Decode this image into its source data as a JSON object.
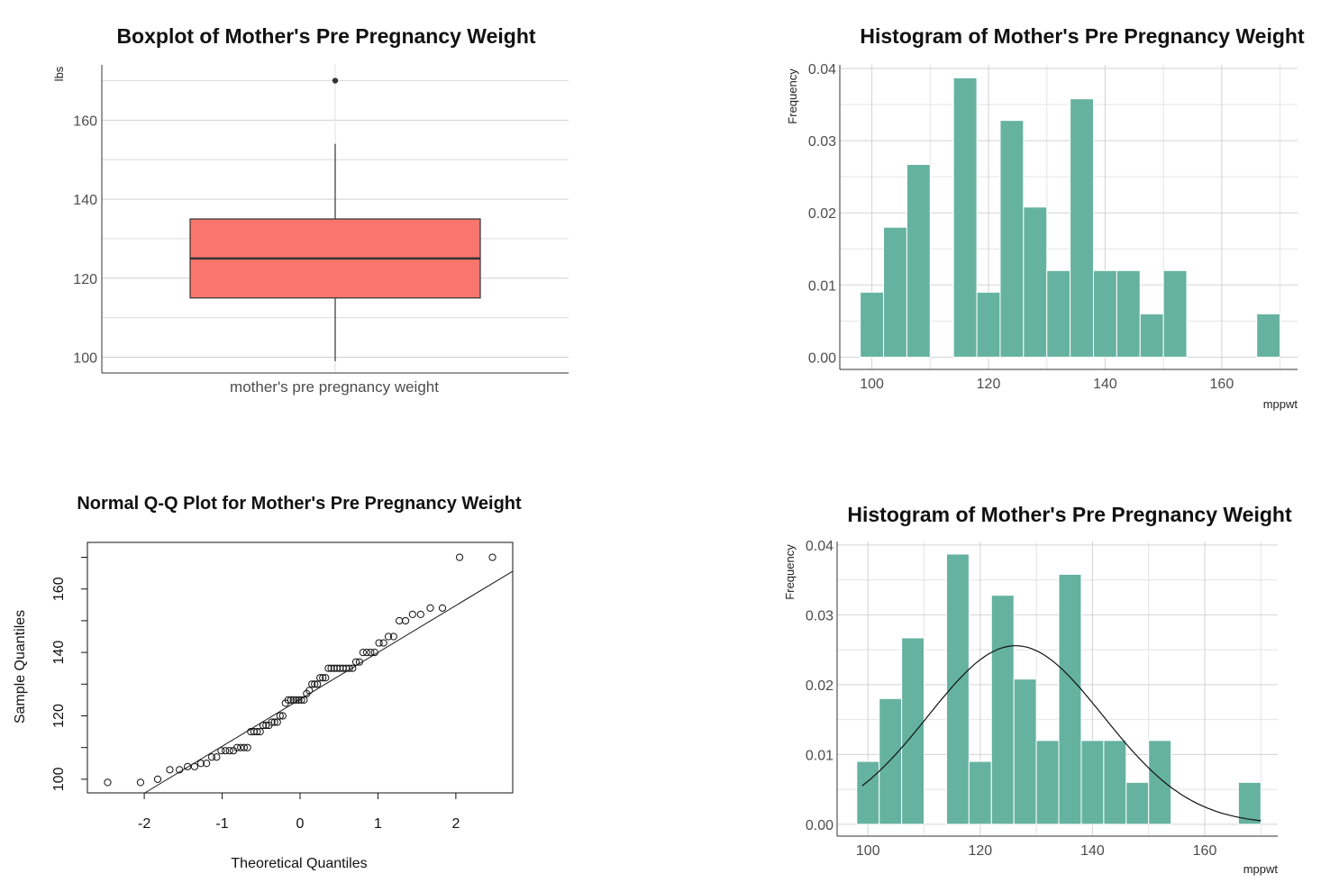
{
  "chart_data": [
    {
      "type": "box",
      "title": "Boxplot of Mother's Pre Pregnancy Weight",
      "ylabel": "lbs",
      "xlabel": "",
      "category": "mother's pre pregnancy weight",
      "ylim": [
        96,
        174
      ],
      "yticks": [
        100,
        120,
        140,
        160
      ],
      "stats": {
        "whisker_low": 99,
        "q1": 115,
        "median": 125,
        "q3": 135,
        "whisker_high": 154,
        "outliers": [
          170
        ]
      },
      "fill": "#f8766d",
      "grid": true
    },
    {
      "type": "bar",
      "title": "Histogram of Mother's Pre Pregnancy Weight",
      "xlabel": "mppwt",
      "ylabel": "Frequency",
      "bin_width": 4,
      "bin_starts": [
        98,
        102,
        106,
        110,
        114,
        118,
        122,
        126,
        130,
        134,
        138,
        142,
        146,
        150,
        154,
        158,
        162,
        166
      ],
      "values": [
        0.009,
        0.018,
        0.0267,
        0,
        0.0387,
        0.009,
        0.0328,
        0.0208,
        0.012,
        0.0358,
        0.012,
        0.012,
        0.006,
        0.012,
        0,
        0,
        0,
        0.006
      ],
      "xlim": [
        94.5,
        173
      ],
      "ylim": [
        -0.0017,
        0.0405
      ],
      "xticks": [
        100,
        120,
        140,
        160
      ],
      "yticks": [
        0.0,
        0.01,
        0.02,
        0.03,
        0.04
      ],
      "color": "#66b2a0",
      "grid": true
    },
    {
      "type": "scatter",
      "title": "Normal Q-Q Plot for Mother's Pre Pregnancy Weight",
      "xlabel": "Theoretical Quantiles",
      "ylabel": "Sample Quantiles",
      "xlim": [
        -2.73,
        2.73
      ],
      "ylim": [
        95.7,
        174.7
      ],
      "xticks": [
        -2,
        -1,
        0,
        1,
        2
      ],
      "yticks": [
        100,
        120,
        140,
        160
      ],
      "points_y": [
        99,
        99,
        100,
        103,
        103,
        104,
        104,
        105,
        105,
        107,
        107,
        109,
        109,
        109,
        109,
        110,
        110,
        110,
        110,
        115,
        115,
        115,
        115,
        117,
        117,
        117,
        118,
        118,
        118,
        120,
        120,
        124,
        125,
        125,
        125,
        125,
        125,
        125,
        125,
        127,
        128,
        130,
        130,
        130,
        132,
        132,
        132,
        135,
        135,
        135,
        135,
        135,
        135,
        135,
        135,
        135,
        137,
        137,
        140,
        140,
        140,
        140,
        143,
        143,
        145,
        145,
        150,
        150,
        152,
        152,
        154,
        154,
        170,
        170
      ],
      "reference_line": {
        "intercept": 125.2,
        "slope": 14.8
      }
    },
    {
      "type": "bar",
      "title": "Histogram of Mother's Pre Pregnancy Weight",
      "xlabel": "mppwt",
      "ylabel": "Frequency",
      "bin_width": 4,
      "bin_starts": [
        98,
        102,
        106,
        110,
        114,
        118,
        122,
        126,
        130,
        134,
        138,
        142,
        146,
        150,
        154,
        158,
        162,
        166
      ],
      "values": [
        0.009,
        0.018,
        0.0267,
        0,
        0.0387,
        0.009,
        0.0328,
        0.0208,
        0.012,
        0.0358,
        0.012,
        0.012,
        0.006,
        0.012,
        0,
        0,
        0,
        0.006
      ],
      "xlim": [
        94.5,
        173
      ],
      "ylim": [
        -0.0017,
        0.0405
      ],
      "xticks": [
        100,
        120,
        140,
        160
      ],
      "yticks": [
        0.0,
        0.01,
        0.02,
        0.03,
        0.04
      ],
      "color": "#66b2a0",
      "grid": true,
      "density_curve": {
        "mean": 126.3,
        "sd": 15.6
      }
    }
  ]
}
